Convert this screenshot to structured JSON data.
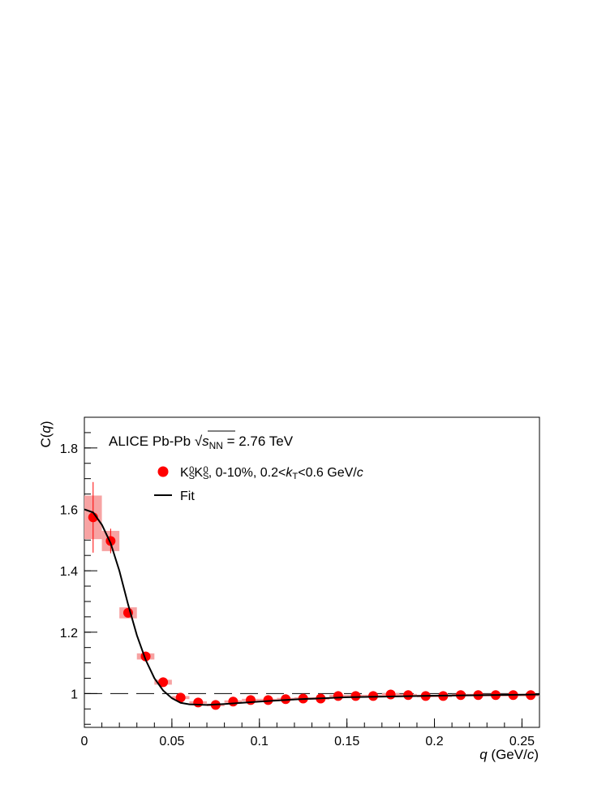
{
  "chart_data": {
    "type": "scatter",
    "annotation": "ALICE Pb-Pb √sNN = 2.76 TeV",
    "xlabel": "q (GeV/c)",
    "ylabel": "C(q)",
    "xlim": [
      0,
      0.26
    ],
    "ylim": [
      0.89,
      1.9
    ],
    "xticks": [
      0,
      0.05,
      0.1,
      0.15,
      0.2,
      0.25
    ],
    "yticks": [
      1,
      1.2,
      1.4,
      1.6,
      1.8
    ],
    "reference_line": 1,
    "series": [
      {
        "name": "KS0KS0, 0-10%, 0.2<kT<0.6 GeV/c",
        "color": "#ff0000",
        "sys_color": "#f7a3a3",
        "x": [
          0.005,
          0.015,
          0.025,
          0.035,
          0.045,
          0.055,
          0.065,
          0.075,
          0.085,
          0.095,
          0.105,
          0.115,
          0.125,
          0.135,
          0.145,
          0.155,
          0.165,
          0.175,
          0.185,
          0.195,
          0.205,
          0.215,
          0.225,
          0.235,
          0.245,
          0.255
        ],
        "values": [
          1.574,
          1.497,
          1.263,
          1.121,
          1.037,
          0.987,
          0.971,
          0.963,
          0.974,
          0.979,
          0.979,
          0.982,
          0.984,
          0.984,
          0.992,
          0.992,
          0.992,
          0.997,
          0.995,
          0.992,
          0.992,
          0.995,
          0.995,
          0.995,
          0.995,
          0.995
        ],
        "errors": [
          0.115,
          0.04,
          0.015,
          0.008,
          0.005,
          0.004,
          0.003,
          0.003,
          0.003,
          0.003,
          0.003,
          0.003,
          0.003,
          0.003,
          0.003,
          0.003,
          0.003,
          0.003,
          0.003,
          0.003,
          0.003,
          0.003,
          0.003,
          0.003,
          0.003,
          0.003
        ],
        "sys_errors": [
          0.071,
          0.033,
          0.018,
          0.01,
          0.008,
          0.005,
          0.004,
          0.004,
          0.004,
          0.004,
          0.004,
          0.004,
          0.004,
          0.004,
          0.004,
          0.004,
          0.004,
          0.004,
          0.004,
          0.004,
          0.004,
          0.004,
          0.004,
          0.004,
          0.004,
          0.004
        ]
      },
      {
        "name": "Fit",
        "color": "#000000",
        "line": true,
        "x": [
          0,
          0.005,
          0.01,
          0.015,
          0.02,
          0.025,
          0.03,
          0.035,
          0.04,
          0.045,
          0.05,
          0.055,
          0.06,
          0.07,
          0.08,
          0.1,
          0.12,
          0.15,
          0.2,
          0.26
        ],
        "values": [
          1.6,
          1.59,
          1.55,
          1.49,
          1.4,
          1.29,
          1.19,
          1.11,
          1.05,
          1.01,
          0.985,
          0.97,
          0.965,
          0.963,
          0.966,
          0.974,
          0.981,
          0.988,
          0.993,
          0.997
        ]
      }
    ]
  }
}
